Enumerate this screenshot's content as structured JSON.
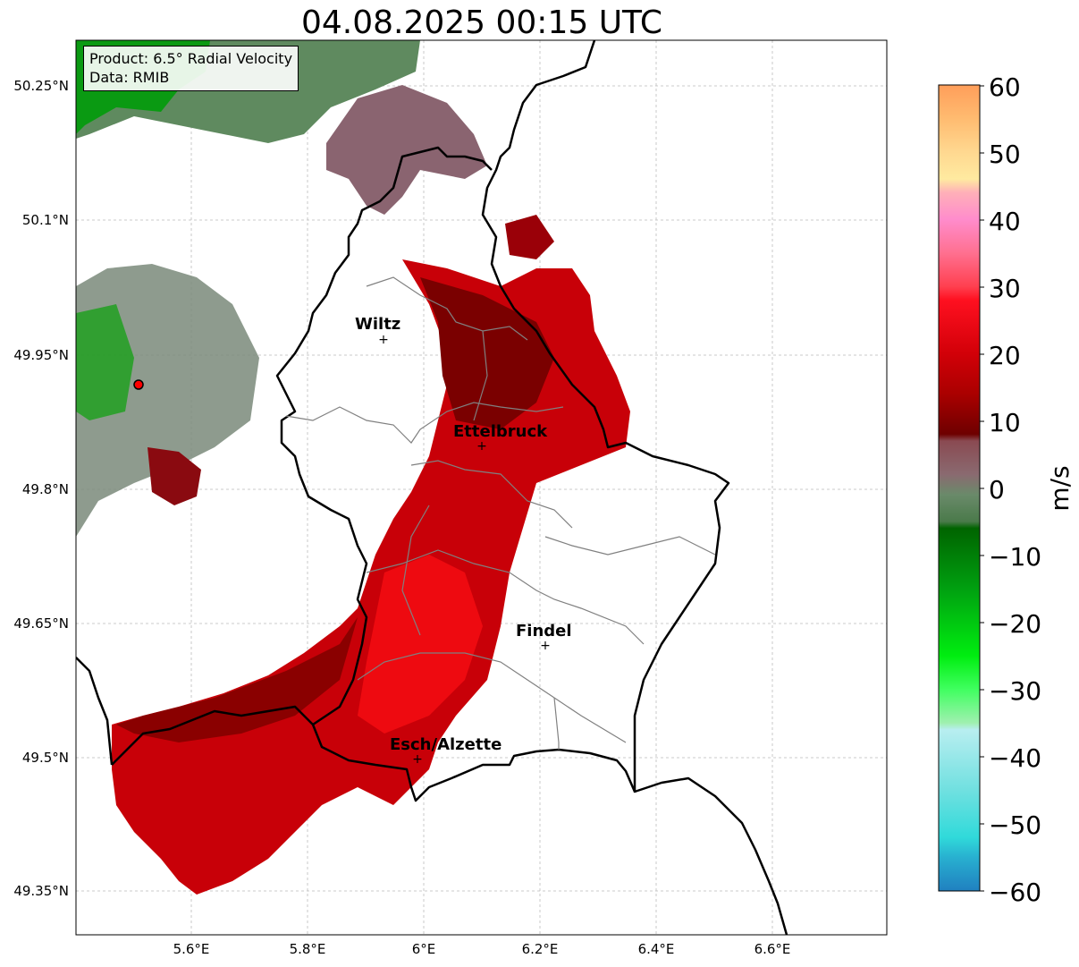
{
  "title": "04.08.2025 00:15 UTC",
  "info_box": {
    "product": "Product: 6.5° Radial Velocity",
    "source": "Data: RMIB"
  },
  "axes": {
    "lat_labels": [
      "50.25°N",
      "50.1°N",
      "49.95°N",
      "49.8°N",
      "49.65°N",
      "49.5°N",
      "49.35°N"
    ],
    "lon_labels": [
      "5.6°E",
      "5.8°E",
      "6°E",
      "6.2°E",
      "6.4°E",
      "6.6°E"
    ]
  },
  "cities": [
    {
      "name": "Wiltz"
    },
    {
      "name": "Ettelbruck"
    },
    {
      "name": "Findel"
    },
    {
      "name": "Esch/Alzette"
    }
  ],
  "colorbar": {
    "unit": "m/s",
    "ticks": [
      "60",
      "50",
      "40",
      "30",
      "20",
      "10",
      "0",
      "−10",
      "−20",
      "−30",
      "−40",
      "−50",
      "−60"
    ],
    "range": [
      -60,
      60
    ],
    "stops": [
      {
        "value": 60,
        "color": "#ff9e5a"
      },
      {
        "value": 55,
        "color": "#ffbb70"
      },
      {
        "value": 50,
        "color": "#ffd890"
      },
      {
        "value": 46,
        "color": "#ffeaa0"
      },
      {
        "value": 44,
        "color": "#ffb0b8"
      },
      {
        "value": 40,
        "color": "#ff8ccc"
      },
      {
        "value": 35,
        "color": "#ff7090"
      },
      {
        "value": 30,
        "color": "#ff4050"
      },
      {
        "value": 28,
        "color": "#ff1020"
      },
      {
        "value": 20,
        "color": "#d20008"
      },
      {
        "value": 14,
        "color": "#aa0000"
      },
      {
        "value": 8,
        "color": "#6e0000"
      },
      {
        "value": 7,
        "color": "#8a4a52"
      },
      {
        "value": 2,
        "color": "#8a6a70"
      },
      {
        "value": -1,
        "color": "#6a8a6a"
      },
      {
        "value": -5,
        "color": "#4a7a4a"
      },
      {
        "value": -6,
        "color": "#006400"
      },
      {
        "value": -15,
        "color": "#00a010"
      },
      {
        "value": -25,
        "color": "#00ee10"
      },
      {
        "value": -30,
        "color": "#40ff60"
      },
      {
        "value": -35,
        "color": "#a0f0b0"
      },
      {
        "value": -36,
        "color": "#b8eef0"
      },
      {
        "value": -45,
        "color": "#70e0e0"
      },
      {
        "value": -52,
        "color": "#30dada"
      },
      {
        "value": -55,
        "color": "#28b0d0"
      },
      {
        "value": -60,
        "color": "#2080c0"
      }
    ]
  }
}
